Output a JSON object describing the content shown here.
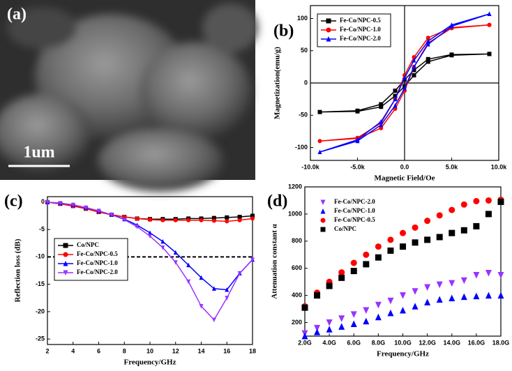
{
  "panel_a": {
    "label": "(a)",
    "scale_bar": "1um"
  },
  "chart_data": [
    {
      "type": "line",
      "panel_label": "(b)",
      "x_label": "Magnetic Field/Oe",
      "y_label": "Magnetization(emu/g)",
      "xlim": [
        -10000,
        10000
      ],
      "ylim": [
        -120,
        120
      ],
      "xticks": [
        {
          "value": -10000,
          "label": "-10.0k"
        },
        {
          "value": -5000,
          "label": "-5.0k"
        },
        {
          "value": 0,
          "label": "0.0"
        },
        {
          "value": 5000,
          "label": "5.0k"
        },
        {
          "value": 10000,
          "label": "10.0k"
        }
      ],
      "yticks": [
        -100,
        -50,
        0,
        50,
        100
      ],
      "axes_at_zero": true,
      "legend": "upper left",
      "series": [
        {
          "name": "Fe-Co/NPC-0.5",
          "color": "#000000",
          "marker": "square",
          "x": [
            9000,
            5000,
            2500,
            1000,
            0,
            -1000,
            -2500,
            -5000,
            -9000,
            -5000,
            -2500,
            -1000,
            0,
            1000,
            2500,
            5000,
            9000
          ],
          "values": [
            45,
            44,
            37,
            20,
            5,
            -12,
            -33,
            -43,
            -45,
            -44,
            -37,
            -20,
            -5,
            12,
            33,
            43,
            45
          ]
        },
        {
          "name": "Fe-Co/NPC-1.0",
          "color": "#ff0000",
          "marker": "circle",
          "x": [
            9000,
            5000,
            2500,
            1000,
            0,
            -1000,
            -2500,
            -5000,
            -9000,
            -5000,
            -2500,
            -1000,
            0,
            1000,
            2500,
            5000,
            9000
          ],
          "values": [
            90,
            86,
            70,
            40,
            12,
            -25,
            -62,
            -85,
            -90,
            -86,
            -70,
            -40,
            -12,
            25,
            62,
            85,
            90
          ]
        },
        {
          "name": "Fe-Co/NPC-2.0",
          "color": "#0000ff",
          "marker": "triangle",
          "x": [
            9000,
            5000,
            2500,
            1000,
            0,
            -1000,
            -2500,
            -5000,
            -9000,
            -5000,
            -2500,
            -1000,
            0,
            1000,
            2500,
            5000,
            9000
          ],
          "values": [
            107,
            90,
            65,
            35,
            8,
            -25,
            -60,
            -88,
            -107,
            -90,
            -65,
            -35,
            -8,
            25,
            60,
            88,
            107
          ]
        }
      ]
    },
    {
      "type": "line",
      "panel_label": "(c)",
      "x_label": "Frequency/GHz",
      "y_label": "Reflection loss (dB)",
      "xlim": [
        2,
        18
      ],
      "ylim": [
        -26,
        1
      ],
      "xticks": [
        2,
        4,
        6,
        8,
        10,
        12,
        14,
        16,
        18
      ],
      "yticks": [
        0,
        -5,
        -10,
        -15,
        -20,
        -25
      ],
      "ref_line": -10,
      "legend": "lower left",
      "x": [
        2,
        3,
        4,
        5,
        6,
        7,
        8,
        9,
        10,
        11,
        12,
        13,
        14,
        15,
        16,
        17,
        18
      ],
      "series": [
        {
          "name": "Co/NPC",
          "color": "#000000",
          "marker": "square",
          "values": [
            0,
            -0.3,
            -0.7,
            -1.2,
            -1.8,
            -2.3,
            -2.7,
            -3,
            -3.1,
            -3.1,
            -3.1,
            -3,
            -3,
            -2.9,
            -2.8,
            -2.7,
            -2.5
          ]
        },
        {
          "name": "Fe-Co/NPC-0.5",
          "color": "#ff0000",
          "marker": "circle",
          "values": [
            0,
            -0.3,
            -0.7,
            -1.2,
            -1.8,
            -2.3,
            -2.7,
            -3,
            -3.2,
            -3.3,
            -3.3,
            -3.3,
            -3.3,
            -3.4,
            -3.5,
            -3.3,
            -3
          ]
        },
        {
          "name": "Fe-Co/NPC-1.0",
          "color": "#0000ff",
          "marker": "triangle",
          "values": [
            0,
            -0.2,
            -0.5,
            -1,
            -1.6,
            -2.3,
            -3.1,
            -4.2,
            -5.6,
            -7.2,
            -9.2,
            -11.5,
            -13.8,
            -15.8,
            -16,
            -13,
            -10.5
          ]
        },
        {
          "name": "Fe-Co/NPC-2.0",
          "color": "#9933ff",
          "marker": "triangle-down",
          "values": [
            0,
            -0.2,
            -0.5,
            -1,
            -1.6,
            -2.3,
            -3.2,
            -4.5,
            -6.2,
            -8.3,
            -11,
            -14.5,
            -19,
            -21.5,
            -17.5,
            -13,
            -10.5
          ]
        }
      ]
    },
    {
      "type": "scatter",
      "panel_label": "(d)",
      "x_label": "Frequency/GHz",
      "y_label": "Attenuation constant α",
      "xlim": [
        2,
        18
      ],
      "ylim": [
        100,
        1200
      ],
      "xticks": [
        {
          "value": 2,
          "label": "2.0G"
        },
        {
          "value": 4,
          "label": "4.0G"
        },
        {
          "value": 6,
          "label": "6.0G"
        },
        {
          "value": 8,
          "label": "8.0G"
        },
        {
          "value": 10,
          "label": "10.0G"
        },
        {
          "value": 12,
          "label": "12.0G"
        },
        {
          "value": 14,
          "label": "14.0G"
        },
        {
          "value": 16,
          "label": "16.0G"
        },
        {
          "value": 18,
          "label": "18.0G"
        }
      ],
      "yticks": [
        200,
        400,
        600,
        800,
        1000,
        1200
      ],
      "legend": "upper left",
      "x": [
        2,
        3,
        4,
        5,
        6,
        7,
        8,
        9,
        10,
        11,
        12,
        13,
        14,
        15,
        16,
        17,
        18
      ],
      "series": [
        {
          "name": "Fe-Co/NPC-2.0",
          "color": "#9933ff",
          "marker": "triangle-down",
          "values": [
            120,
            160,
            200,
            230,
            260,
            290,
            330,
            360,
            400,
            430,
            460,
            480,
            490,
            510,
            550,
            565,
            550
          ]
        },
        {
          "name": "Fe-Co/NPC-1.0",
          "color": "#0000ff",
          "marker": "triangle",
          "values": [
            100,
            130,
            150,
            170,
            190,
            210,
            240,
            270,
            290,
            320,
            350,
            370,
            380,
            390,
            395,
            400,
            400
          ]
        },
        {
          "name": "Fe-Co/NPC-0.5",
          "color": "#ff0000",
          "marker": "circle",
          "values": [
            320,
            420,
            500,
            570,
            640,
            700,
            760,
            810,
            860,
            900,
            950,
            990,
            1030,
            1070,
            1095,
            1100,
            1105
          ]
        },
        {
          "name": "Co/NPC",
          "color": "#000000",
          "marker": "square",
          "values": [
            310,
            400,
            470,
            530,
            580,
            630,
            680,
            730,
            760,
            790,
            810,
            830,
            860,
            880,
            910,
            1000,
            1090
          ]
        }
      ]
    }
  ]
}
